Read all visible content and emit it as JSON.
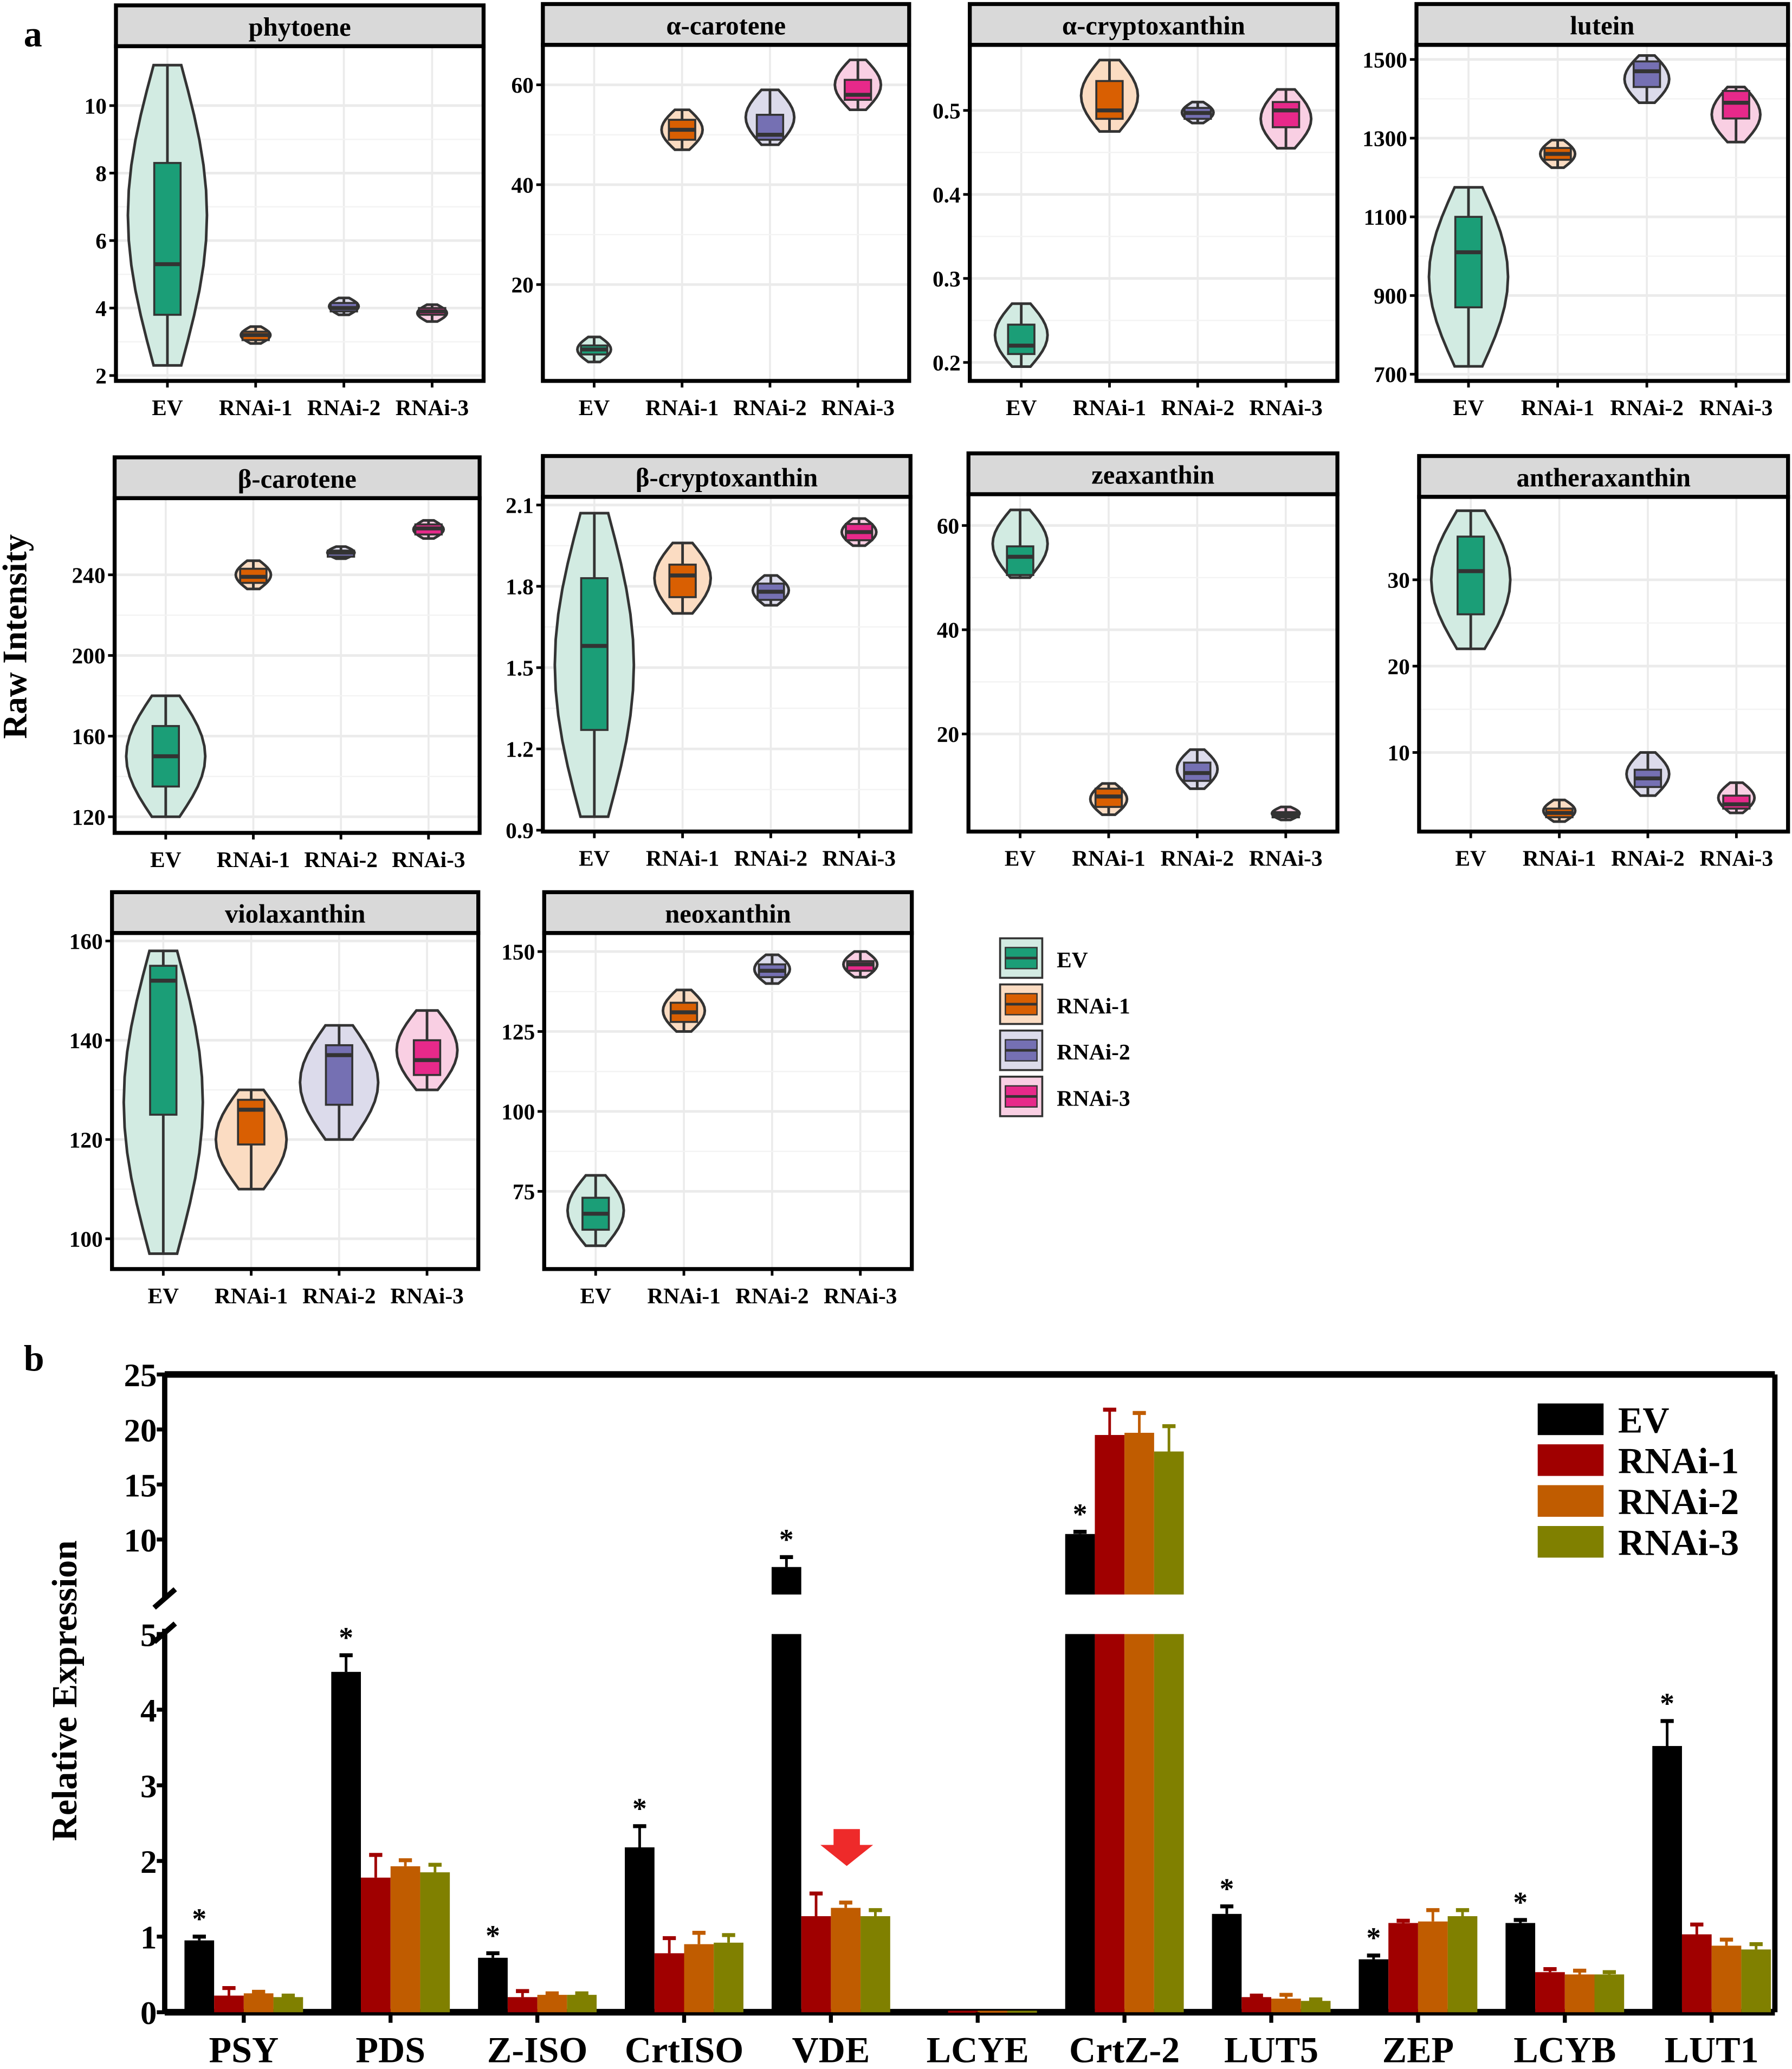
{
  "panel_a_label": "a",
  "panel_b_label": "b",
  "groups": [
    "EV",
    "RNAi-1",
    "RNAi-2",
    "RNAi-3"
  ],
  "colors": {
    "EV": "#1b9e77",
    "RNAi-1": "#d95f02",
    "RNAi-2": "#7570b3",
    "RNAi-3": "#e7298a"
  },
  "violin_fill": {
    "EV": "#d2ebe2",
    "RNAi-1": "#fbdcc2",
    "RNAi-2": "#dcdbeb",
    "RNAi-3": "#f9cfe3"
  },
  "bar_colors": {
    "EV": "#000000",
    "RNAi-1": "#a00000",
    "RNAi-2": "#c05c00",
    "RNAi-3": "#808000"
  },
  "chart_data": [
    {
      "type": "violin-box",
      "ylabel": "Raw Intensity",
      "grid": true,
      "legend": {
        "position": "right",
        "entries": [
          "EV",
          "RNAi-1",
          "RNAi-2",
          "RNAi-3"
        ]
      },
      "categories": [
        "EV",
        "RNAi-1",
        "RNAi-2",
        "RNAi-3"
      ],
      "stats_order": [
        "min",
        "q1",
        "median",
        "q3",
        "max"
      ],
      "panels": [
        {
          "title": "phytoene",
          "ylim": [
            1.84,
            11.76
          ],
          "ticks": [
            2,
            4,
            6,
            8,
            10
          ],
          "values": [
            [
              2.3,
              3.8,
              5.3,
              8.3,
              11.2
            ],
            [
              2.95,
              3.05,
              3.2,
              3.3,
              3.45
            ],
            [
              3.8,
              3.9,
              4.0,
              4.15,
              4.3
            ],
            [
              3.6,
              3.8,
              3.9,
              4.0,
              4.1
            ]
          ]
        },
        {
          "title": "α-carotene",
          "ylim": [
            0.7,
            68
          ],
          "ticks": [
            20,
            40,
            60
          ],
          "values": [
            [
              4.5,
              6,
              7,
              7.8,
              9.5
            ],
            [
              47,
              49,
              51,
              53,
              55
            ],
            [
              48,
              49,
              50,
              54,
              59
            ],
            [
              55,
              57,
              58,
              61,
              65
            ]
          ]
        },
        {
          "title": "α-cryptoxanthin",
          "ylim": [
            0.178,
            0.578
          ],
          "ticks": [
            0.2,
            0.3,
            0.4,
            0.5
          ],
          "values": [
            [
              0.195,
              0.21,
              0.22,
              0.245,
              0.27
            ],
            [
              0.475,
              0.49,
              0.5,
              0.535,
              0.56
            ],
            [
              0.485,
              0.49,
              0.497,
              0.503,
              0.51
            ],
            [
              0.455,
              0.48,
              0.5,
              0.51,
              0.525
            ]
          ]
        },
        {
          "title": "lutein",
          "ylim": [
            683,
            1537
          ],
          "ticks": [
            700,
            900,
            1100,
            1300,
            1500
          ],
          "values": [
            [
              720,
              870,
              1010,
              1100,
              1175
            ],
            [
              1225,
              1245,
              1260,
              1275,
              1295
            ],
            [
              1390,
              1430,
              1470,
              1495,
              1510
            ],
            [
              1290,
              1350,
              1390,
              1420,
              1430
            ]
          ]
        },
        {
          "title": "β-carotene",
          "ylim": [
            112,
            278
          ],
          "ticks": [
            120,
            160,
            200,
            240
          ],
          "values": [
            [
              120,
              135,
              150,
              165,
              180
            ],
            [
              233,
              236,
              239,
              243,
              247
            ],
            [
              248,
              249,
              251,
              252,
              254
            ],
            [
              258,
              260,
              263,
              265,
              267
            ]
          ]
        },
        {
          "title": "β-cryptoxanthin",
          "ylim": [
            0.895,
            2.13
          ],
          "ticks": [
            0.9,
            1.2,
            1.5,
            1.8,
            2.1
          ],
          "values": [
            [
              0.95,
              1.27,
              1.58,
              1.83,
              2.07
            ],
            [
              1.7,
              1.76,
              1.84,
              1.88,
              1.96
            ],
            [
              1.73,
              1.75,
              1.78,
              1.81,
              1.84
            ],
            [
              1.95,
              1.97,
              2.0,
              2.03,
              2.05
            ]
          ]
        },
        {
          "title": "zeaxanthin",
          "ylim": [
            1.27,
            66
          ],
          "ticks": [
            20,
            40,
            60
          ],
          "values": [
            [
              50,
              50.5,
              54,
              56,
              63
            ],
            [
              4.5,
              6,
              8,
              9.5,
              10.5
            ],
            [
              9.5,
              11,
              12.5,
              14.5,
              17
            ],
            [
              3.5,
              4,
              4.5,
              5,
              6
            ]
          ]
        },
        {
          "title": "antheraxanthin",
          "ylim": [
            0.84,
            39.6
          ],
          "ticks": [
            10,
            20,
            30
          ],
          "values": [
            [
              22,
              26,
              31,
              35,
              38
            ],
            [
              2,
              2.5,
              3,
              3.5,
              4.5
            ],
            [
              5,
              6,
              7,
              8,
              10
            ],
            [
              3,
              3.5,
              4,
              5,
              6.5
            ]
          ]
        },
        {
          "title": "violaxanthin",
          "ylim": [
            93.9,
            161.6
          ],
          "ticks": [
            100,
            120,
            140,
            160
          ],
          "values": [
            [
              97,
              125,
              152,
              155,
              158
            ],
            [
              110,
              119,
              126,
              128,
              130
            ],
            [
              120,
              127,
              137,
              139,
              143
            ],
            [
              130,
              133,
              136,
              140,
              146
            ]
          ]
        },
        {
          "title": "neoxanthin",
          "ylim": [
            50.7,
            155.8
          ],
          "ticks": [
            75,
            100,
            125,
            150
          ],
          "values": [
            [
              58,
              63,
              68,
              73,
              80
            ],
            [
              125,
              128,
              131,
              134,
              138
            ],
            [
              140,
              142,
              144,
              146,
              149
            ],
            [
              142,
              144,
              146,
              147,
              150
            ]
          ]
        }
      ]
    },
    {
      "type": "bar",
      "ylabel": "Relative Expression",
      "axis_break": {
        "lower": [
          0,
          5
        ],
        "upper": [
          5,
          25
        ]
      },
      "lower_ticks": [
        0,
        1,
        2,
        3,
        4,
        5
      ],
      "upper_ticks": [
        5,
        10,
        15,
        20,
        25
      ],
      "legend": {
        "position": "top-right"
      },
      "categories": [
        "PSY",
        "PDS",
        "Z-ISO",
        "CrtISO",
        "VDE",
        "LCYE",
        "CrtZ-2",
        "LUT5",
        "ZEP",
        "LCYB",
        "LUT1"
      ],
      "series": [
        {
          "name": "EV",
          "values": [
            0.95,
            4.5,
            0.72,
            2.18,
            7.5,
            0.01,
            10.5,
            1.3,
            0.7,
            1.18,
            3.52
          ],
          "errors": [
            0.05,
            0.22,
            0.06,
            0.28,
            0.9,
            0.0,
            0.2,
            0.1,
            0.05,
            0.04,
            0.33
          ]
        },
        {
          "name": "RNAi-1",
          "values": [
            0.22,
            1.78,
            0.2,
            0.78,
            1.27,
            0.02,
            19.5,
            0.2,
            1.18,
            0.53,
            1.03
          ],
          "errors": [
            0.1,
            0.3,
            0.08,
            0.2,
            0.3,
            0.0,
            2.3,
            0.02,
            0.03,
            0.04,
            0.13
          ]
        },
        {
          "name": "RNAi-2",
          "values": [
            0.25,
            1.93,
            0.23,
            0.9,
            1.38,
            0.02,
            19.7,
            0.18,
            1.2,
            0.5,
            0.88
          ],
          "errors": [
            0.02,
            0.08,
            0.02,
            0.15,
            0.07,
            0.0,
            1.8,
            0.05,
            0.15,
            0.05,
            0.08
          ]
        },
        {
          "name": "RNAi-3",
          "values": [
            0.2,
            1.85,
            0.23,
            0.92,
            1.27,
            0.02,
            18.0,
            0.15,
            1.27,
            0.5,
            0.83
          ],
          "errors": [
            0.02,
            0.1,
            0.02,
            0.1,
            0.08,
            0.0,
            2.3,
            0.02,
            0.08,
            0.03,
            0.07
          ]
        }
      ],
      "significance_marker": "*",
      "significant_EV": [
        "PSY",
        "PDS",
        "Z-ISO",
        "CrtISO",
        "VDE",
        "CrtZ-2",
        "LUT5",
        "ZEP",
        "LCYB",
        "LUT1"
      ],
      "annotation": {
        "type": "red-down-arrow",
        "category": "VDE",
        "color": "#ee2a2a"
      }
    }
  ]
}
